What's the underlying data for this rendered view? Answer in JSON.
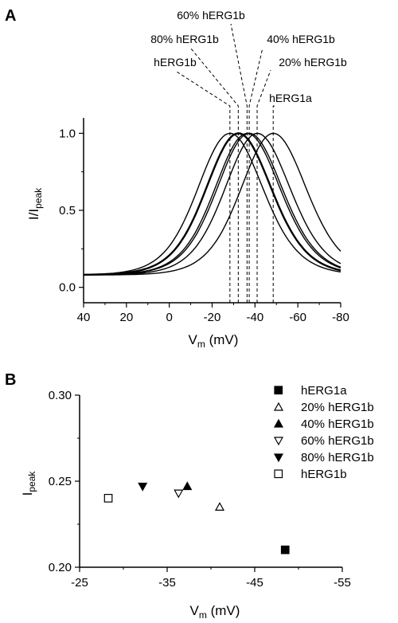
{
  "panel_a": {
    "label": "A",
    "ylabel_main": "I/I",
    "ylabel_sub": "peak",
    "xlabel_main": "V",
    "xlabel_sub": "m",
    "xlabel_unit": " (mV)"
  },
  "panel_b": {
    "label": "B",
    "ylabel_main": "I",
    "ylabel_sub": "peak",
    "xlabel_main": "V",
    "xlabel_sub": "m",
    "xlabel_unit": " (mV)"
  },
  "chart_data": [
    {
      "type": "line",
      "x_reversed": true,
      "xlim": [
        40,
        -80
      ],
      "ylim": [
        -0.1,
        1.1
      ],
      "x_ticks": [
        "40",
        "20",
        "0",
        "-20",
        "-40",
        "-60",
        "-80"
      ],
      "y_ticks": [
        "0.0",
        "0.5",
        "1.0"
      ],
      "x_tick_values": [
        40,
        20,
        0,
        -20,
        -40,
        -60,
        -80
      ],
      "y_tick_values": [
        0,
        0.5,
        1.0
      ],
      "series": [
        {
          "label": "hERG1b",
          "peak_vm": -28.3,
          "bold": false
        },
        {
          "label": "80% hERG1b",
          "peak_vm": -32.2,
          "bold": true
        },
        {
          "label": "60% hERG1b",
          "peak_vm": -36.3,
          "bold": false
        },
        {
          "label": "40% hERG1b",
          "peak_vm": -37.3,
          "bold": false
        },
        {
          "label": "20% hERG1b",
          "peak_vm": -41.0,
          "bold": false
        },
        {
          "label": "hERG1a",
          "peak_vm": -48.5,
          "bold": false
        }
      ]
    },
    {
      "type": "scatter",
      "x_reversed": true,
      "xlim": [
        -25,
        -55
      ],
      "ylim": [
        0.2,
        0.3
      ],
      "x_ticks": [
        "-25",
        "-35",
        "-45",
        "-55"
      ],
      "y_ticks": [
        "0.20",
        "0.25",
        "0.30"
      ],
      "x_tick_values": [
        -25,
        -35,
        -45,
        -55
      ],
      "y_tick_values": [
        0.2,
        0.25,
        0.3
      ],
      "legend_position": "top-right",
      "series": [
        {
          "name": "hERG1a",
          "marker": "square-filled",
          "x": -48.5,
          "y": 0.21
        },
        {
          "name": "20% hERG1b",
          "marker": "triangle-up-open",
          "x": -41.0,
          "y": 0.235
        },
        {
          "name": "40% hERG1b",
          "marker": "triangle-up-filled",
          "x": -37.3,
          "y": 0.247
        },
        {
          "name": "60% hERG1b",
          "marker": "triangle-down-open",
          "x": -36.3,
          "y": 0.243
        },
        {
          "name": "80% hERG1b",
          "marker": "triangle-down-filled",
          "x": -32.2,
          "y": 0.247
        },
        {
          "name": "hERG1b",
          "marker": "square-open",
          "x": -28.3,
          "y": 0.24
        }
      ]
    }
  ]
}
